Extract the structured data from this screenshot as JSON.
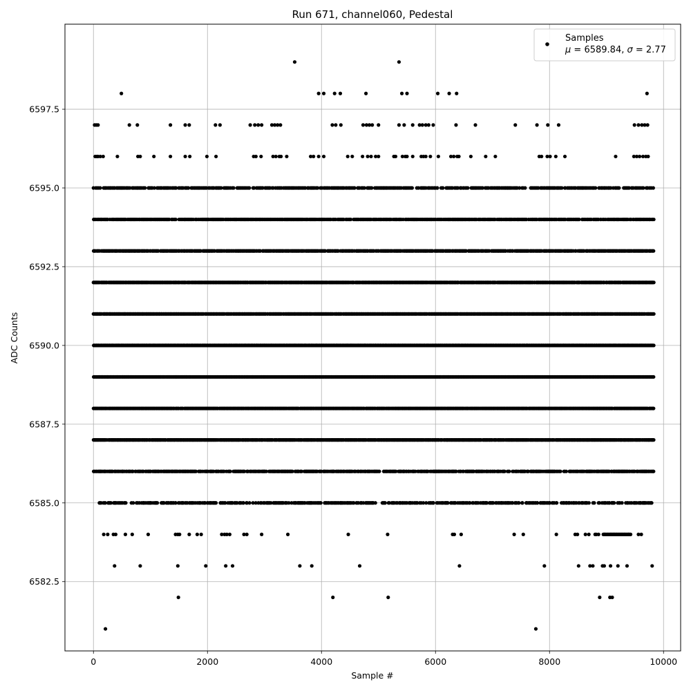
{
  "chart_data": {
    "type": "scatter",
    "title": "Run 671, channel060, Pedestal",
    "xlabel": "Sample #",
    "ylabel": "ADC Counts",
    "xlim": [
      -500,
      10300
    ],
    "ylim": [
      6580.3,
      6600.2
    ],
    "xticks": [
      0,
      2000,
      4000,
      6000,
      8000,
      10000
    ],
    "xtick_labels": [
      "0",
      "2000",
      "4000",
      "6000",
      "8000",
      "10000"
    ],
    "yticks": [
      6582.5,
      6585.0,
      6587.5,
      6590.0,
      6592.5,
      6595.0,
      6597.5
    ],
    "ytick_labels": [
      "6582.5",
      "6585.0",
      "6587.5",
      "6590.0",
      "6592.5",
      "6595.0",
      "6597.5"
    ],
    "grid": true,
    "legend": {
      "position": "top-right",
      "entries": [
        {
          "label": "Samples",
          "stat_mu": "6589.84",
          "stat_sigma": "2.77"
        }
      ]
    },
    "series": [
      {
        "name": "Samples",
        "color": "#000000",
        "marker": "circle",
        "n_samples": 9830,
        "level_ranges": [
          {
            "y": 6581,
            "x": [
              210,
              7760
            ]
          },
          {
            "y": 6582,
            "x": [
              1490,
              4200,
              5170,
              8880,
              9060,
              9100
            ]
          },
          {
            "y": 6583,
            "x": [
              370,
              820,
              1480,
              1970,
              2320,
              2440,
              3620,
              3830,
              4670,
              6420,
              7910,
              8510,
              8710,
              8760,
              8930,
              8960,
              9070,
              9200,
              9360,
              9800
            ]
          },
          {
            "y": 6584,
            "x": [
              180,
              250,
              350,
              390,
              560,
              680,
              960,
              1440,
              1480,
              1510,
              1680,
              1820,
              1890,
              2250,
              2300,
              2340,
              2390,
              2640,
              2690,
              2950,
              3410,
              4470,
              5160,
              6300,
              6330,
              6450,
              7380,
              7540,
              8120,
              8450,
              8490,
              8630,
              8690,
              8800,
              8820,
              8860
            ]
          },
          {
            "y": 6584,
            "x_range": [
              8940,
              9430
            ]
          },
          {
            "y": 6584,
            "x": [
              9560,
              9610
            ]
          },
          {
            "y": 6585,
            "x_range": [
              100,
              9800
            ],
            "density": 0.55
          },
          {
            "y": 6586,
            "x_range": [
              0,
              9830
            ],
            "density": 0.75
          },
          {
            "y": 6587,
            "x_range": [
              0,
              9830
            ],
            "density": 0.95
          },
          {
            "y": 6588,
            "x_range": [
              0,
              9830
            ],
            "density": 0.97
          },
          {
            "y": 6589,
            "x_range": [
              0,
              9830
            ],
            "density": 1.0
          },
          {
            "y": 6590,
            "x_range": [
              0,
              9830
            ],
            "density": 1.0
          },
          {
            "y": 6591,
            "x_range": [
              0,
              9830
            ],
            "density": 0.97
          },
          {
            "y": 6592,
            "x_range": [
              0,
              9830
            ],
            "density": 0.95
          },
          {
            "y": 6593,
            "x_range": [
              0,
              9830
            ],
            "density": 0.85
          },
          {
            "y": 6594,
            "x_range": [
              0,
              9830
            ],
            "density": 0.75
          },
          {
            "y": 6595,
            "x_range": [
              0,
              9830
            ],
            "density": 0.6
          },
          {
            "y": 6596,
            "x": [
              30,
              60,
              80,
              120,
              170,
              420,
              780,
              820,
              1060,
              1350,
              1610,
              1690,
              1990,
              2150,
              2810,
              2850,
              2940,
              3150,
              3200,
              3260,
              3290,
              3390,
              3810,
              3860,
              3950,
              4040,
              4460,
              4540,
              4720,
              4810,
              4870,
              4950,
              5000,
              5270,
              5300,
              5420,
              5470,
              5500,
              5600,
              5750,
              5790,
              5830,
              5910,
              6050,
              6270,
              6320,
              6380,
              6410,
              6620,
              6880,
              7050,
              7820,
              7860,
              7960,
              8010,
              8110,
              8270,
              9160,
              9480,
              9530,
              9580,
              9640,
              9690,
              9730
            ]
          },
          {
            "y": 6597,
            "x": [
              20,
              50,
              80,
              630,
              770,
              1350,
              1610,
              1680,
              2140,
              2220,
              2750,
              2830,
              2890,
              2950,
              3130,
              3180,
              3230,
              3280,
              4190,
              4250,
              4340,
              4730,
              4790,
              4840,
              4890,
              5000,
              5360,
              5450,
              5600,
              5720,
              5770,
              5830,
              5880,
              5960,
              6360,
              6700,
              7400,
              7780,
              7970,
              8160,
              9490,
              9560,
              9620,
              9670,
              9720
            ]
          },
          {
            "y": 6598,
            "x": [
              490,
              3950,
              4040,
              4230,
              4330,
              4780,
              5410,
              5500,
              6040,
              6240,
              6370,
              9710
            ]
          },
          {
            "y": 6599,
            "x": [
              3530,
              5360
            ]
          }
        ]
      }
    ]
  }
}
